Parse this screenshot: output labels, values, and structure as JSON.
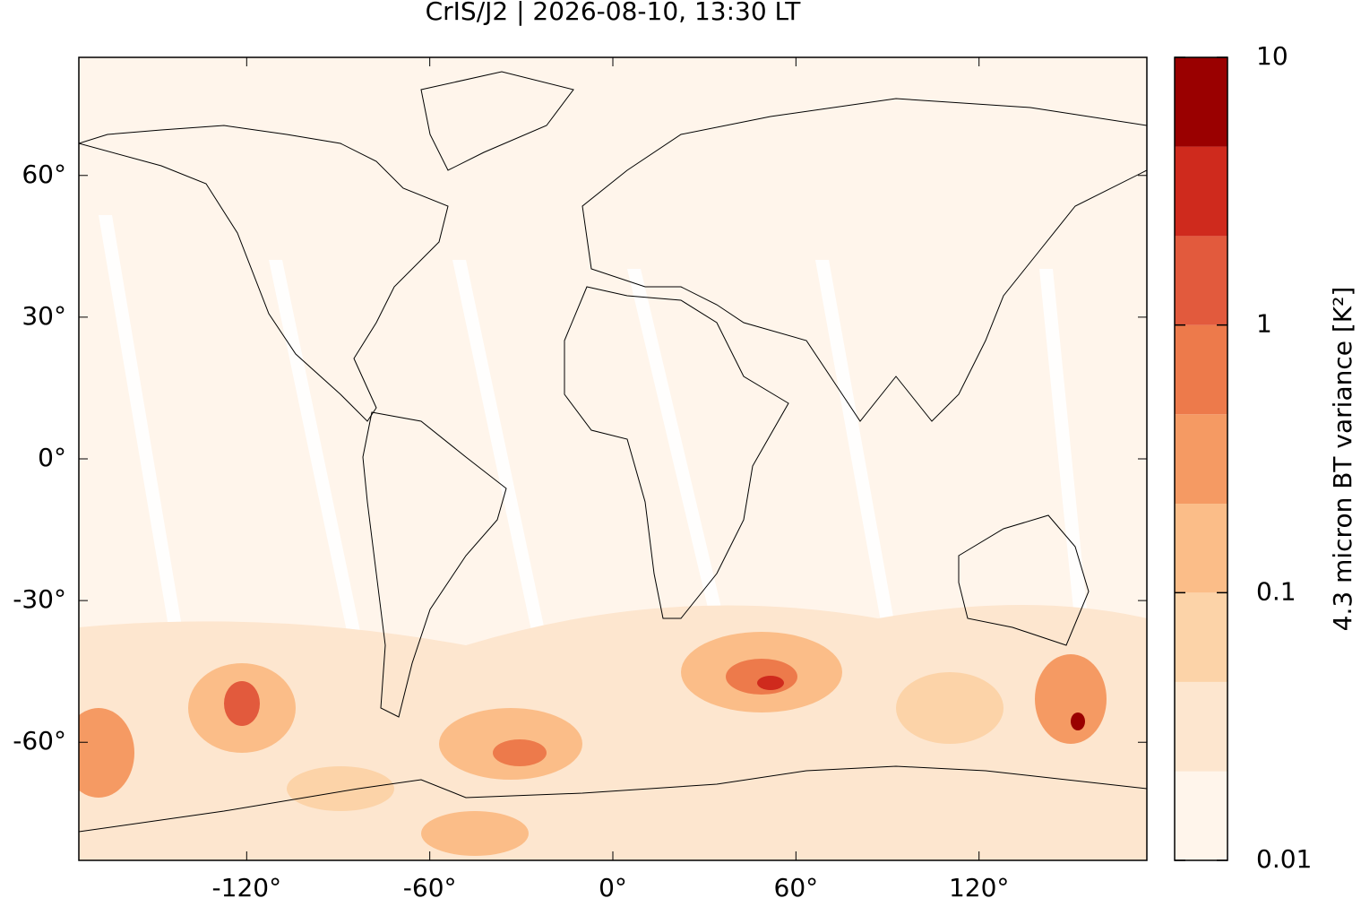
{
  "chart_data": {
    "type": "map",
    "title": "CrIS/J2 | 2026-08-10, 13:30 LT",
    "xlim": [
      -175,
      175
    ],
    "ylim": [
      -85,
      85
    ],
    "xticks": [
      {
        "value": -120,
        "label": "-120°"
      },
      {
        "value": -60,
        "label": "-60°"
      },
      {
        "value": 0,
        "label": "0°"
      },
      {
        "value": 60,
        "label": "60°"
      },
      {
        "value": 120,
        "label": "120°"
      }
    ],
    "yticks": [
      {
        "value": 60,
        "label": "60°"
      },
      {
        "value": 30,
        "label": "30°"
      },
      {
        "value": 0,
        "label": "0°"
      },
      {
        "value": -30,
        "label": "-30°"
      },
      {
        "value": -60,
        "label": "-60°"
      }
    ],
    "colorbar": {
      "label": "4.3 micron BT variance [K²]",
      "log": true,
      "lim": [
        0.01,
        10
      ],
      "levels": [
        0.01,
        0.0215,
        0.0464,
        0.1,
        0.215,
        0.464,
        1,
        2.15,
        4.64,
        10
      ],
      "colors": [
        "#fff5eb",
        "#fde6cf",
        "#fcd3a8",
        "#fbbd88",
        "#f59a63",
        "#ed7a4b",
        "#e25a3d",
        "#cf2a1d",
        "#9a0000"
      ],
      "ticks": [
        0.01,
        0.1,
        1,
        10
      ]
    }
  }
}
